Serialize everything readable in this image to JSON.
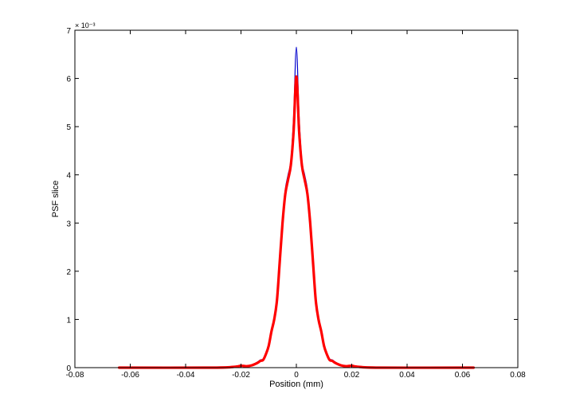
{
  "chart_data": {
    "type": "line",
    "title": "",
    "xlabel": "Position (mm)",
    "ylabel": "PSF slice",
    "exponent_label": "× 10⁻³",
    "xlim": [
      -0.08,
      0.08
    ],
    "ylim": [
      0,
      0.007
    ],
    "grid": false,
    "box": true,
    "xticks": [
      -0.08,
      -0.06,
      -0.04,
      -0.02,
      0,
      0.02,
      0.04,
      0.06,
      0.08
    ],
    "xtick_labels": [
      "-0.08",
      "-0.06",
      "-0.04",
      "-0.02",
      "0",
      "0.02",
      "0.04",
      "0.06",
      "0.08"
    ],
    "yticks": [
      0,
      0.001,
      0.002,
      0.003,
      0.004,
      0.005,
      0.006,
      0.007
    ],
    "ytick_labels": [
      "0",
      "1",
      "2",
      "3",
      "4",
      "5",
      "6",
      "7"
    ],
    "series": [
      {
        "color": "#0000cc",
        "x": [
          -0.064,
          -0.03,
          -0.022,
          -0.02,
          -0.018,
          -0.016,
          -0.014,
          -0.013,
          -0.012,
          -0.011,
          -0.01,
          -0.009,
          -0.008,
          -0.007,
          -0.006,
          -0.005,
          -0.004,
          -0.003,
          -0.002,
          -0.001,
          0,
          0.001,
          0.002,
          0.003,
          0.004,
          0.005,
          0.006,
          0.007,
          0.008,
          0.009,
          0.01,
          0.011,
          0.012,
          0.013,
          0.014,
          0.016,
          0.018,
          0.02,
          0.022,
          0.03,
          0.064
        ],
        "y": [
          0,
          0,
          2e-05,
          5e-05,
          3e-05,
          6e-05,
          0.00012,
          0.00016,
          0.00018,
          0.0003,
          0.0005,
          0.0008,
          0.00105,
          0.0015,
          0.0023,
          0.0031,
          0.0037,
          0.004,
          0.0043,
          0.0052,
          0.00665,
          0.0052,
          0.0043,
          0.004,
          0.0037,
          0.0031,
          0.0023,
          0.0015,
          0.00105,
          0.0008,
          0.0005,
          0.0003,
          0.00018,
          0.00016,
          0.00012,
          6e-05,
          3e-05,
          5e-05,
          2e-05,
          0,
          0
        ]
      },
      {
        "color": "#ff0000",
        "x": [
          -0.064,
          -0.03,
          -0.022,
          -0.02,
          -0.018,
          -0.016,
          -0.014,
          -0.013,
          -0.012,
          -0.011,
          -0.01,
          -0.009,
          -0.008,
          -0.007,
          -0.006,
          -0.005,
          -0.004,
          -0.003,
          -0.002,
          -0.001,
          0,
          0.001,
          0.002,
          0.003,
          0.004,
          0.005,
          0.006,
          0.007,
          0.008,
          0.009,
          0.01,
          0.011,
          0.012,
          0.013,
          0.014,
          0.016,
          0.018,
          0.02,
          0.022,
          0.03,
          0.064
        ],
        "y": [
          0,
          0,
          2e-05,
          4e-05,
          3e-05,
          5e-05,
          0.0001,
          0.00014,
          0.00016,
          0.00028,
          0.00045,
          0.00075,
          0.001,
          0.0014,
          0.0022,
          0.003,
          0.0036,
          0.0039,
          0.0042,
          0.0049,
          0.00604,
          0.0049,
          0.0042,
          0.0039,
          0.0036,
          0.003,
          0.0022,
          0.0014,
          0.001,
          0.00075,
          0.00045,
          0.00028,
          0.00016,
          0.00014,
          0.0001,
          5e-05,
          3e-05,
          4e-05,
          2e-05,
          0,
          0
        ]
      }
    ]
  }
}
